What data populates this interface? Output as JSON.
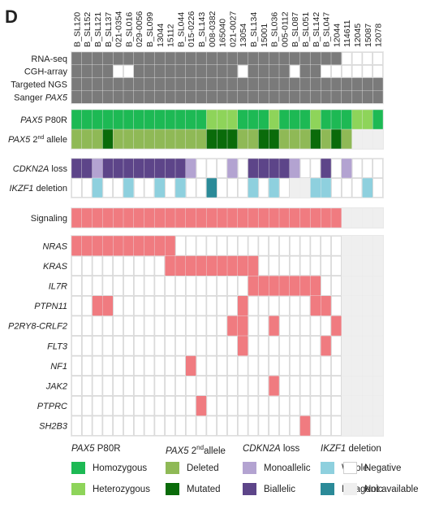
{
  "panel_label": "D",
  "chart_data": {
    "type": "heatmap",
    "title": "",
    "samples": [
      "B_SL120",
      "B_SL152",
      "B_SL121",
      "B_SL137",
      "021-0354",
      "B_SL016",
      "029-0056",
      "B_SL099",
      "13044",
      "15112",
      "B_SL044",
      "015-0226",
      "B_SL143",
      "008-0382",
      "165040",
      "021-0027",
      "13054",
      "B_SL134",
      "15001",
      "B_SL036",
      "005-0112",
      "B_SL087",
      "B_SL051",
      "B_SL142",
      "B_SL047",
      "12044",
      "114611",
      "12045",
      "15087",
      "12078"
    ],
    "colors": {
      "assay_done": "#7a7a7a",
      "negative": "#ffffff",
      "not_available": "#efefef",
      "homozygous": "#1db954",
      "heterozygous": "#8ed45a",
      "deleted": "#8fb956",
      "mutated": "#0a6b0a",
      "monoallelic": "#b3a3d1",
      "biallelic": "#5d4589",
      "whole": "#8ed0de",
      "intragenic": "#2b8a98",
      "signaling": "#f07b80",
      "mutation": "#f07b80",
      "grid": "#cfcfcf"
    },
    "groups": [
      {
        "rows": [
          {
            "label": "RNA-seq",
            "values": [
              1,
              1,
              1,
              1,
              1,
              1,
              1,
              1,
              1,
              1,
              1,
              1,
              1,
              1,
              1,
              1,
              1,
              1,
              1,
              1,
              1,
              1,
              1,
              1,
              1,
              1,
              0,
              0,
              0,
              0
            ],
            "map": "assay"
          },
          {
            "label": "CGH-array",
            "values": [
              1,
              1,
              1,
              1,
              0,
              0,
              1,
              1,
              1,
              1,
              1,
              1,
              1,
              1,
              1,
              1,
              0,
              1,
              1,
              1,
              1,
              0,
              1,
              1,
              0,
              0,
              0,
              0,
              0,
              0
            ],
            "map": "assay"
          },
          {
            "label": "Targeted NGS",
            "values": [
              1,
              1,
              1,
              1,
              1,
              1,
              1,
              1,
              1,
              1,
              1,
              1,
              1,
              1,
              1,
              1,
              1,
              1,
              1,
              1,
              1,
              1,
              1,
              1,
              1,
              1,
              1,
              1,
              1,
              1
            ],
            "map": "assay"
          },
          {
            "label_parts": [
              "Sanger ",
              "PAX5"
            ],
            "values": [
              1,
              1,
              1,
              1,
              1,
              1,
              1,
              1,
              1,
              1,
              1,
              1,
              1,
              1,
              1,
              1,
              1,
              1,
              1,
              1,
              1,
              1,
              1,
              1,
              1,
              1,
              1,
              1,
              1,
              1
            ],
            "map": "assay"
          }
        ]
      },
      {
        "rows": [
          {
            "label_parts": [
              "PAX5",
              " P80R"
            ],
            "values": [
              "ho",
              "ho",
              "ho",
              "ho",
              "ho",
              "ho",
              "ho",
              "ho",
              "ho",
              "ho",
              "ho",
              "ho",
              "ho",
              "he",
              "he",
              "he",
              "ho",
              "ho",
              "ho",
              "he",
              "ho",
              "ho",
              "ho",
              "he",
              "ho",
              "ho",
              "ho",
              "he",
              "he",
              "ho"
            ],
            "map": "pax5"
          },
          {
            "label_parts": [
              "PAX5",
              " 2",
              "nd",
              " allele"
            ],
            "values": [
              "d",
              "d",
              "d",
              "m",
              "d",
              "d",
              "d",
              "d",
              "d",
              "d",
              "d",
              "d",
              "d",
              "m",
              "m",
              "m",
              "d",
              "d",
              "m",
              "m",
              "d",
              "d",
              "d",
              "m",
              "d",
              "m",
              "d",
              "na",
              "na",
              "na"
            ],
            "map": "pax5"
          }
        ]
      },
      {
        "rows": [
          {
            "label_parts": [
              "CDKN2A",
              " loss"
            ],
            "values": [
              "b",
              "b",
              "mo",
              "b",
              "b",
              "b",
              "b",
              "b",
              "b",
              "b",
              "b",
              "mo",
              "n",
              "n",
              "n",
              "mo",
              "n",
              "b",
              "b",
              "b",
              "b",
              "mo",
              "n",
              "n",
              "b",
              "n",
              "mo",
              "n",
              "n",
              "n"
            ],
            "map": "cdkn2a"
          },
          {
            "label_parts": [
              "IKZF1",
              " deletion"
            ],
            "values": [
              "n",
              "n",
              "w",
              "n",
              "n",
              "w",
              "n",
              "n",
              "w",
              "n",
              "w",
              "n",
              "n",
              "i",
              "n",
              "n",
              "n",
              "w",
              "n",
              "w",
              "n",
              "na",
              "na",
              "w",
              "w",
              "n",
              "n",
              "n",
              "w",
              "n"
            ],
            "map": "ikzf1"
          }
        ]
      },
      {
        "rows": [
          {
            "label": "Signaling",
            "values": [
              1,
              1,
              1,
              1,
              1,
              1,
              1,
              1,
              1,
              1,
              1,
              1,
              1,
              1,
              1,
              1,
              1,
              1,
              1,
              1,
              1,
              1,
              1,
              1,
              1,
              1,
              "na",
              "na",
              "na",
              "na"
            ],
            "map": "sig"
          }
        ]
      },
      {
        "rows": [
          {
            "label_italic": "NRAS",
            "values": [
              1,
              1,
              1,
              1,
              1,
              1,
              1,
              1,
              1,
              1,
              0,
              0,
              0,
              0,
              0,
              0,
              0,
              0,
              0,
              0,
              0,
              0,
              0,
              0,
              0,
              0,
              "na",
              "na",
              "na",
              "na"
            ],
            "map": "sig"
          },
          {
            "label_italic": "KRAS",
            "values": [
              0,
              0,
              0,
              0,
              0,
              0,
              0,
              0,
              0,
              1,
              1,
              1,
              1,
              1,
              1,
              1,
              1,
              1,
              0,
              0,
              0,
              0,
              0,
              0,
              0,
              0,
              "na",
              "na",
              "na",
              "na"
            ],
            "map": "sig"
          },
          {
            "label_italic": "IL7R",
            "values": [
              0,
              0,
              0,
              0,
              0,
              0,
              0,
              0,
              0,
              0,
              0,
              0,
              0,
              0,
              0,
              0,
              0,
              1,
              1,
              1,
              1,
              1,
              1,
              1,
              0,
              0,
              "na",
              "na",
              "na",
              "na"
            ],
            "map": "sig"
          },
          {
            "label_italic": "PTPN11",
            "values": [
              0,
              0,
              1,
              1,
              0,
              0,
              0,
              0,
              0,
              0,
              0,
              0,
              0,
              0,
              0,
              0,
              1,
              0,
              0,
              0,
              0,
              0,
              0,
              1,
              1,
              0,
              "na",
              "na",
              "na",
              "na"
            ],
            "map": "sig"
          },
          {
            "label_italic": "P2RY8-CRLF2",
            "values": [
              0,
              0,
              0,
              0,
              0,
              0,
              0,
              0,
              0,
              0,
              0,
              0,
              0,
              0,
              0,
              1,
              1,
              0,
              0,
              1,
              0,
              0,
              0,
              0,
              0,
              1,
              "na",
              "na",
              "na",
              "na"
            ],
            "map": "sig"
          },
          {
            "label_italic": "FLT3",
            "values": [
              0,
              0,
              0,
              0,
              0,
              0,
              0,
              0,
              0,
              0,
              0,
              0,
              0,
              0,
              0,
              0,
              1,
              0,
              0,
              0,
              0,
              0,
              0,
              0,
              1,
              0,
              "na",
              "na",
              "na",
              "na"
            ],
            "map": "sig"
          },
          {
            "label_italic": "NF1",
            "values": [
              0,
              0,
              0,
              0,
              0,
              0,
              0,
              0,
              0,
              0,
              0,
              1,
              0,
              0,
              0,
              0,
              0,
              0,
              0,
              0,
              0,
              0,
              0,
              0,
              0,
              0,
              "na",
              "na",
              "na",
              "na"
            ],
            "map": "sig"
          },
          {
            "label_italic": "JAK2",
            "values": [
              0,
              0,
              0,
              0,
              0,
              0,
              0,
              0,
              0,
              0,
              0,
              0,
              0,
              0,
              0,
              0,
              0,
              0,
              0,
              1,
              0,
              0,
              0,
              0,
              0,
              0,
              "na",
              "na",
              "na",
              "na"
            ],
            "map": "sig"
          },
          {
            "label_italic": "PTPRC",
            "values": [
              0,
              0,
              0,
              0,
              0,
              0,
              0,
              0,
              0,
              0,
              0,
              0,
              1,
              0,
              0,
              0,
              0,
              0,
              0,
              0,
              0,
              0,
              0,
              0,
              0,
              0,
              "na",
              "na",
              "na",
              "na"
            ],
            "map": "sig"
          },
          {
            "label_italic": "SH2B3",
            "values": [
              0,
              0,
              0,
              0,
              0,
              0,
              0,
              0,
              0,
              0,
              0,
              0,
              0,
              0,
              0,
              0,
              0,
              0,
              0,
              0,
              0,
              0,
              1,
              0,
              0,
              0,
              "na",
              "na",
              "na",
              "na"
            ],
            "map": "sig"
          }
        ]
      }
    ],
    "legend": {
      "pax5": {
        "title_parts": [
          "PAX5",
          " P80R"
        ],
        "items": [
          {
            "label": "Homozygous",
            "color_key": "homozygous"
          },
          {
            "label": "Heterozygous",
            "color_key": "heterozygous"
          }
        ]
      },
      "pax5_2nd": {
        "title_parts": [
          "PAX5",
          " 2",
          "nd",
          "allele"
        ],
        "items": [
          {
            "label": "Deleted",
            "color_key": "deleted"
          },
          {
            "label": "Mutated",
            "color_key": "mutated"
          }
        ]
      },
      "cdkn2a": {
        "title_parts": [
          "CDKN2A",
          " loss"
        ],
        "items": [
          {
            "label": "Monoallelic",
            "color_key": "monoallelic"
          },
          {
            "label": "Biallelic",
            "color_key": "biallelic"
          }
        ]
      },
      "ikzf1": {
        "title_parts": [
          "IKZF1",
          " deletion"
        ],
        "items": [
          {
            "label": "Whole",
            "color_key": "whole"
          },
          {
            "label": "Intragenic",
            "color_key": "intragenic"
          }
        ]
      },
      "other": {
        "items": [
          {
            "label": "Negative",
            "color_key": "negative"
          },
          {
            "label": "Not available",
            "color_key": "not_available"
          }
        ]
      }
    }
  }
}
